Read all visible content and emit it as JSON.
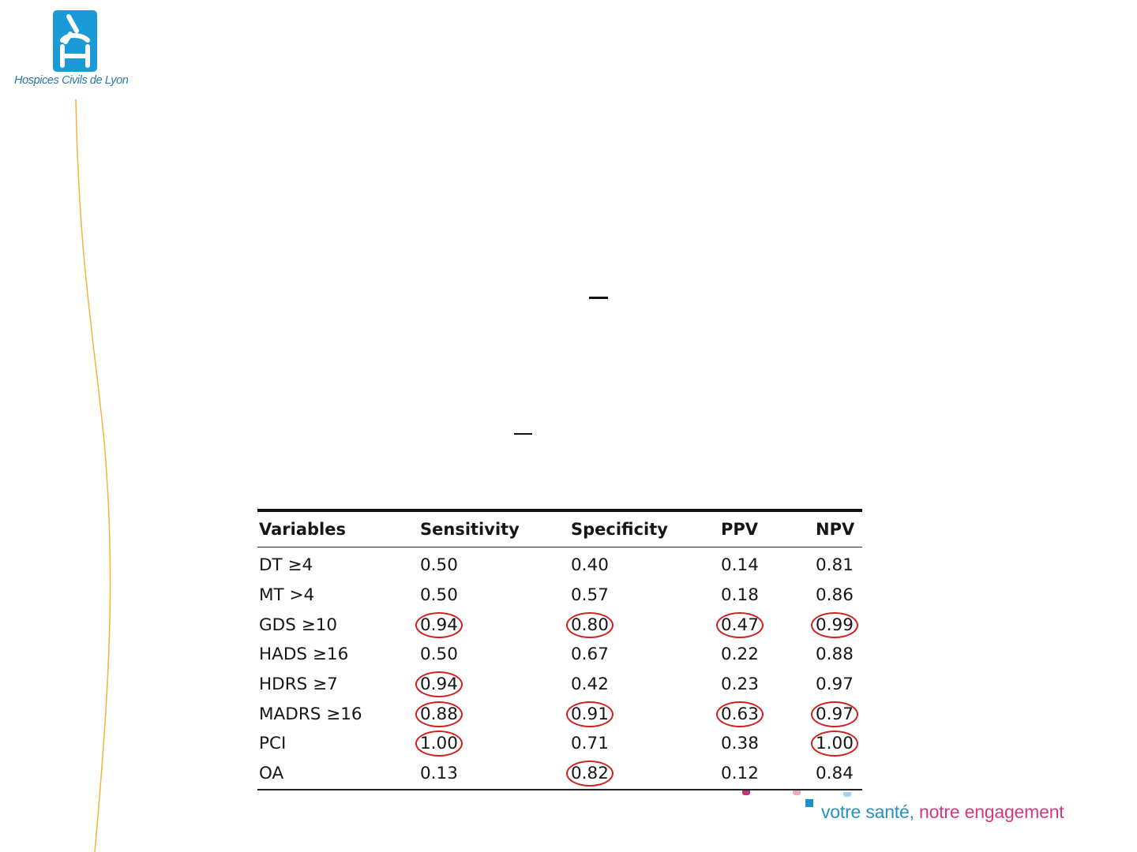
{
  "logo": {
    "brand_name": "Hospices Civils de Lyon",
    "icon": "hcl-logo-icon",
    "color": "#1a9ad6"
  },
  "table": {
    "headers": [
      "Variables",
      "Sensitivity",
      "Specificity",
      "PPV",
      "NPV"
    ],
    "rows": [
      {
        "variable": "DT ≥4",
        "values": [
          "0.50",
          "0.40",
          "0.14",
          "0.81"
        ],
        "circled": [
          false,
          false,
          false,
          false
        ]
      },
      {
        "variable": "MT >4",
        "values": [
          "0.50",
          "0.57",
          "0.18",
          "0.86"
        ],
        "circled": [
          false,
          false,
          false,
          false
        ]
      },
      {
        "variable": "GDS ≥10",
        "values": [
          "0.94",
          "0.80",
          "0.47",
          "0.99"
        ],
        "circled": [
          true,
          true,
          true,
          true
        ]
      },
      {
        "variable": "HADS ≥16",
        "values": [
          "0.50",
          "0.67",
          "0.22",
          "0.88"
        ],
        "circled": [
          false,
          false,
          false,
          false
        ]
      },
      {
        "variable": "HDRS ≥7",
        "values": [
          "0.94",
          "0.42",
          "0.23",
          "0.97"
        ],
        "circled": [
          true,
          false,
          false,
          false
        ]
      },
      {
        "variable": "MADRS ≥16",
        "values": [
          "0.88",
          "0.91",
          "0.63",
          "0.97"
        ],
        "circled": [
          true,
          true,
          true,
          true
        ]
      },
      {
        "variable": "PCI",
        "values": [
          "1.00",
          "0.71",
          "0.38",
          "1.00"
        ],
        "circled": [
          true,
          false,
          false,
          true
        ]
      },
      {
        "variable": "OA",
        "values": [
          "0.13",
          "0.82",
          "0.12",
          "0.84"
        ],
        "circled": [
          false,
          true,
          false,
          false
        ]
      }
    ],
    "highlight_color": "#d21f1f"
  },
  "tagline": {
    "part1": "votre santé,",
    "part2": "notre engagement",
    "color1": "#2a8fc4",
    "color2": "#d3397f"
  }
}
